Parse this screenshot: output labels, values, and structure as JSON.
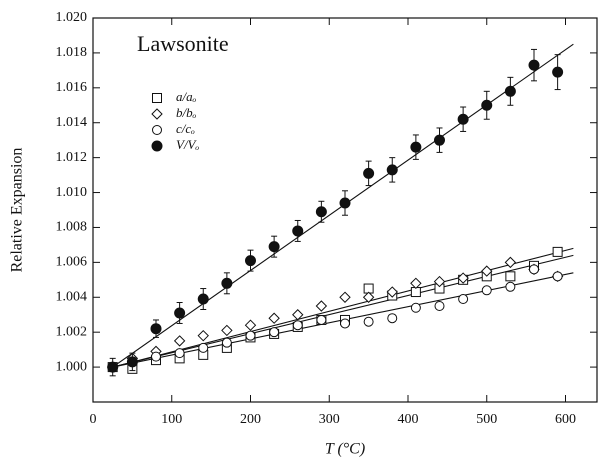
{
  "chart_data": {
    "type": "scatter",
    "title": "Lawsonite",
    "x_label": "T (°C)",
    "y_label": "Relative Expansion",
    "xlim": [
      0,
      640
    ],
    "ylim": [
      0.998,
      1.02
    ],
    "xticks": [
      0,
      100,
      200,
      300,
      400,
      500,
      600
    ],
    "yticks": [
      {
        "value": 1.0,
        "label": "1.000"
      },
      {
        "value": 1.002,
        "label": "1.002"
      },
      {
        "value": 1.004,
        "label": "1.004"
      },
      {
        "value": 1.006,
        "label": "1.006"
      },
      {
        "value": 1.008,
        "label": "1.008"
      },
      {
        "value": 1.01,
        "label": "1.010"
      },
      {
        "value": 1.012,
        "label": "1.012"
      },
      {
        "value": 1.014,
        "label": "1.014"
      },
      {
        "value": 1.016,
        "label": "1.016"
      },
      {
        "value": 1.018,
        "label": "1.018"
      },
      {
        "value": 1.02,
        "label": "1.020"
      }
    ],
    "x": [
      25,
      50,
      80,
      110,
      140,
      170,
      200,
      230,
      260,
      290,
      320,
      350,
      380,
      410,
      440,
      470,
      500,
      530,
      560,
      590
    ],
    "series": [
      {
        "name": "a/aₒ",
        "marker": "square",
        "color": "#111111",
        "values": [
          1.0,
          0.9999,
          1.0004,
          1.0005,
          1.0007,
          1.0011,
          1.0017,
          1.0019,
          1.0023,
          1.0027,
          1.0027,
          1.0045,
          1.0041,
          1.0043,
          1.0045,
          1.005,
          1.0052,
          1.0052,
          1.0058,
          1.0066
        ]
      },
      {
        "name": "b/bₒ",
        "marker": "diamond",
        "color": "#111111",
        "values": [
          1.0,
          1.0005,
          1.0009,
          1.0015,
          1.0018,
          1.0021,
          1.0024,
          1.0028,
          1.003,
          1.0035,
          1.004,
          1.004,
          1.0043,
          1.0048,
          1.0049,
          1.0051,
          1.0055,
          1.006,
          1.0056,
          1.0052
        ]
      },
      {
        "name": "c/cₒ",
        "marker": "circle",
        "color": "#111111",
        "values": [
          1.0,
          1.0003,
          1.0006,
          1.0008,
          1.0011,
          1.0014,
          1.0018,
          1.002,
          1.0024,
          1.0027,
          1.0025,
          1.0026,
          1.0028,
          1.0034,
          1.0035,
          1.0039,
          1.0044,
          1.0046,
          1.0056,
          1.0052
        ]
      },
      {
        "name": "V/Vₒ",
        "marker": "filled-circle",
        "color": "#111111",
        "values": [
          1.0,
          1.0003,
          1.0022,
          1.0031,
          1.0039,
          1.0048,
          1.0061,
          1.0069,
          1.0078,
          1.0089,
          1.0094,
          1.0111,
          1.0113,
          1.0126,
          1.013,
          1.0142,
          1.015,
          1.0158,
          1.0173,
          1.0169
        ],
        "errors": [
          0.0005,
          0.0005,
          0.0005,
          0.0006,
          0.0006,
          0.0006,
          0.0006,
          0.0006,
          0.0006,
          0.0006,
          0.0007,
          0.0007,
          0.0007,
          0.0007,
          0.0007,
          0.0007,
          0.0008,
          0.0008,
          0.0009,
          0.001
        ]
      }
    ],
    "fits": [
      {
        "x": [
          25,
          610
        ],
        "values": [
          1.0,
          1.0185
        ]
      },
      {
        "x": [
          25,
          610
        ],
        "values": [
          1.0,
          1.0068
        ]
      },
      {
        "x": [
          25,
          610
        ],
        "values": [
          1.0,
          1.0064
        ]
      },
      {
        "x": [
          25,
          610
        ],
        "values": [
          1.0,
          1.0054
        ]
      }
    ]
  }
}
